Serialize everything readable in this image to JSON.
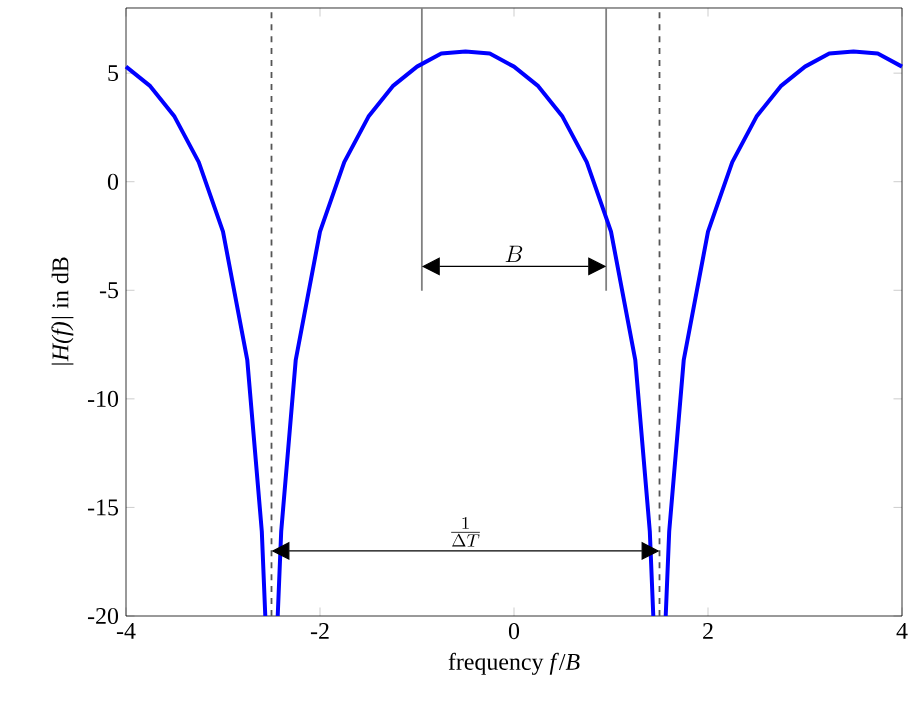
{
  "chart_data": {
    "type": "line",
    "xlabel": "frequency *f*/*B*",
    "ylabel": "*|H(f)|* in dB",
    "x": [
      -4,
      -3.75,
      -3.5,
      -3.25,
      -3,
      -2.75,
      -2.6,
      -2.564,
      -2.5,
      -2.436,
      -2.4,
      -2.25,
      -2,
      -1.75,
      -1.5,
      -1.25,
      -1,
      -0.75,
      -0.5,
      -0.25,
      0,
      0.25,
      0.5,
      0.75,
      1,
      1.25,
      1.4,
      1.436,
      1.5,
      1.564,
      1.6,
      1.75,
      2,
      2.25,
      2.5,
      2.75,
      3,
      3.25,
      3.5,
      3.75,
      4
    ],
    "series": [
      {
        "color": "#0000ff",
        "values": [
          5.3,
          4.4,
          3.0,
          0.9,
          -2.3,
          -8.2,
          -16.1,
          -20,
          null,
          -20,
          -16.1,
          -8.2,
          -2.3,
          0.9,
          3.0,
          4.4,
          5.3,
          5.9,
          6.0,
          5.9,
          5.3,
          4.4,
          3.0,
          0.9,
          -2.3,
          -8.2,
          -16.1,
          -20,
          null,
          -20,
          -16.1,
          -8.2,
          -2.3,
          0.9,
          3.0,
          4.4,
          5.3,
          5.9,
          6.0,
          5.9,
          5.3
        ]
      }
    ],
    "xlim": [
      -4,
      4
    ],
    "ylim": [
      -20,
      8
    ],
    "xticks": [
      -4,
      -2,
      0,
      2,
      4
    ],
    "yticks": [
      -20,
      -15,
      -10,
      -5,
      0,
      5
    ],
    "ref_lines": [
      {
        "axis": "x",
        "value": -0.95,
        "color": "#808080",
        "line_style": "solid"
      },
      {
        "axis": "x",
        "value": 0.95,
        "color": "#808080",
        "line_style": "solid"
      },
      {
        "axis": "x",
        "value": -2.5,
        "color": "#555555",
        "line_style": "dashed"
      },
      {
        "axis": "x",
        "value": 1.5,
        "color": "#555555",
        "line_style": "dashed"
      }
    ],
    "annotations": [
      "B",
      "\\frac{1}{\\Delta T}"
    ],
    "line_style": "solid",
    "marker": "none"
  }
}
